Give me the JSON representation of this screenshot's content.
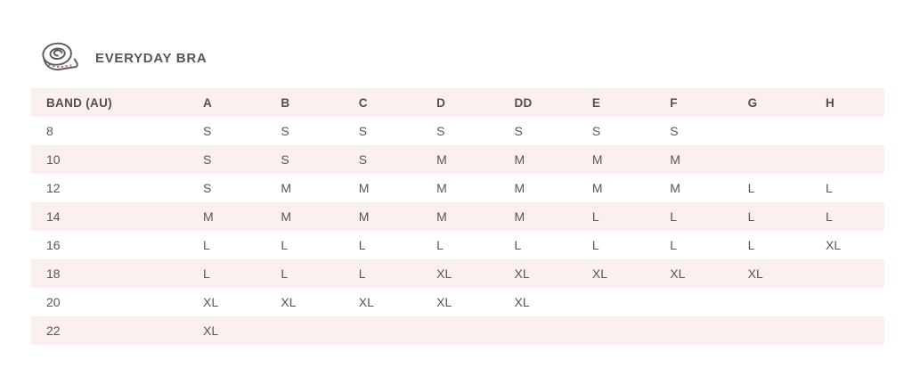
{
  "header": {
    "title": "EVERYDAY BRA",
    "icon": "measuring-tape-icon"
  },
  "colors": {
    "row_pink": "#fbf0ee",
    "text": "#54565a",
    "tape_dot_red": "#c45a64"
  },
  "chart_data": {
    "type": "table",
    "title": "EVERYDAY BRA",
    "columns": [
      "BAND (AU)",
      "A",
      "B",
      "C",
      "D",
      "DD",
      "E",
      "F",
      "G",
      "H"
    ],
    "rows": [
      [
        "8",
        "S",
        "S",
        "S",
        "S",
        "S",
        "S",
        "S",
        "",
        ""
      ],
      [
        "10",
        "S",
        "S",
        "S",
        "M",
        "M",
        "M",
        "M",
        "",
        ""
      ],
      [
        "12",
        "S",
        "M",
        "M",
        "M",
        "M",
        "M",
        "M",
        "L",
        "L"
      ],
      [
        "14",
        "M",
        "M",
        "M",
        "M",
        "M",
        "L",
        "L",
        "L",
        "L"
      ],
      [
        "16",
        "L",
        "L",
        "L",
        "L",
        "L",
        "L",
        "L",
        "L",
        "XL"
      ],
      [
        "18",
        "L",
        "L",
        "L",
        "XL",
        "XL",
        "XL",
        "XL",
        "XL",
        ""
      ],
      [
        "20",
        "XL",
        "XL",
        "XL",
        "XL",
        "XL",
        "",
        "",
        "",
        ""
      ],
      [
        "22",
        "XL",
        "",
        "",
        "",
        "",
        "",
        "",
        "",
        ""
      ]
    ],
    "layout": {
      "striped": true,
      "stripe_rows": [
        "header",
        "10",
        "14",
        "18",
        "22"
      ],
      "first_column_header": "BAND (AU)"
    }
  }
}
